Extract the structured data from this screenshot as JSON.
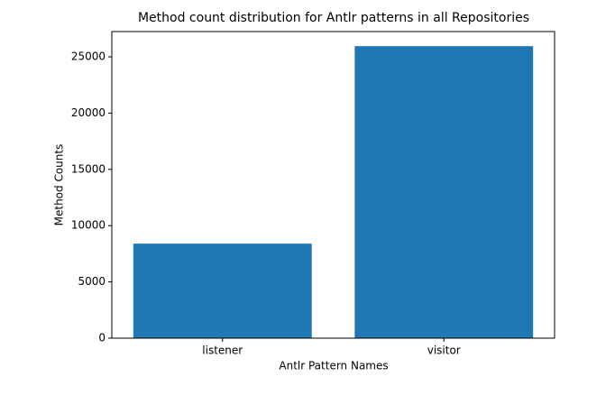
{
  "chart_data": {
    "type": "bar",
    "title": "Method count distribution for Antlr patterns in all Repositories",
    "x_label": "Antlr Pattern Names",
    "y_label": "Method Counts",
    "categories": [
      "listener",
      "visitor"
    ],
    "values": [
      8400,
      25950
    ],
    "color": "#1f77b4",
    "ylim": [
      0,
      27247
    ],
    "yticks": [
      0,
      5000,
      10000,
      15000,
      20000,
      25000
    ],
    "grid": false
  }
}
